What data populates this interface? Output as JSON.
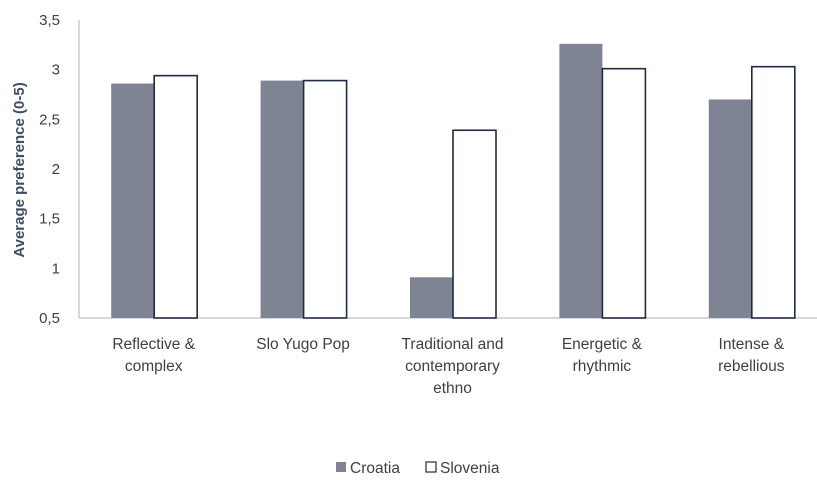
{
  "chart_data": {
    "type": "bar",
    "title": "",
    "xlabel": "",
    "ylabel": "Average preference (0-5)",
    "ylim": [
      0.5,
      3.5
    ],
    "y_ticks": [
      "0,5",
      "1",
      "1,5",
      "2",
      "2,5",
      "3",
      "3,5"
    ],
    "y_tick_values": [
      0.5,
      1,
      1.5,
      2,
      2.5,
      3,
      3.5
    ],
    "grid": false,
    "legend_position": "bottom",
    "categories": [
      [
        "Reflective &",
        "complex"
      ],
      [
        "Slo Yugo Pop"
      ],
      [
        "Traditional and",
        "contemporary",
        "ethno"
      ],
      [
        "Energetic &",
        "rhythmic"
      ],
      [
        "Intense &",
        "rebellious"
      ]
    ],
    "series": [
      {
        "name": "Croatia",
        "values": [
          2.86,
          2.89,
          0.91,
          3.26,
          2.7
        ],
        "color": "#7f8494",
        "style": "filled"
      },
      {
        "name": "Slovenia",
        "values": [
          2.94,
          2.89,
          2.39,
          3.01,
          3.03
        ],
        "color": "#ffffff",
        "stroke": "#1f2a44",
        "style": "outline"
      }
    ]
  }
}
